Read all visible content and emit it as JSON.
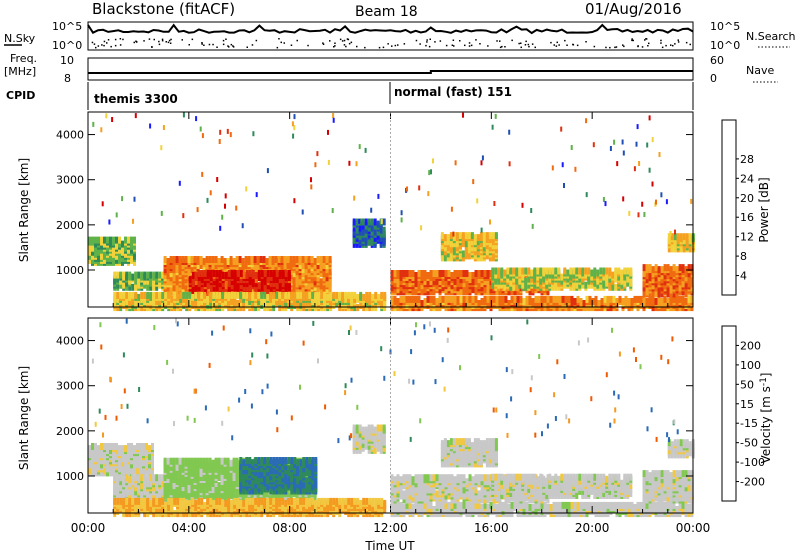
{
  "header": {
    "title": "Blackstone (fitACF)",
    "beam": "Beam 18",
    "date": "01/Aug/2016"
  },
  "nsky_panel": {
    "left_label": "N.Sky",
    "right_label": "N.Search",
    "left_ticks": [
      "10^5",
      "10^0"
    ],
    "right_ticks": [
      "10^5",
      "10^0"
    ]
  },
  "freq_panel": {
    "left_label_1": "Freq.",
    "left_label_2": "[MHz]",
    "right_label": "Nave",
    "left_ticks": [
      "10",
      "8"
    ],
    "right_ticks": [
      "60",
      "0"
    ],
    "cpid_label": "CPID"
  },
  "cpid": [
    {
      "label": "themis 3300",
      "start_hour": 0
    },
    {
      "label": "normal (fast) 151",
      "start_hour": 12
    }
  ],
  "time_axis": {
    "label": "Time UT",
    "ticks": [
      "00:00",
      "04:00",
      "08:00",
      "12:00",
      "16:00",
      "20:00",
      "00:00"
    ]
  },
  "colors": {
    "power_scale": [
      "#1a1aff",
      "#1f4fb4",
      "#2f8a5a",
      "#5fb24a",
      "#f2d23a",
      "#f5a020",
      "#f06a10",
      "#e03010",
      "#d60000"
    ],
    "velocity_scale": [
      "#e00000",
      "#f05a00",
      "#f59a20",
      "#f2c840",
      "#c8c8c8",
      "#80c850",
      "#2f8a5a",
      "#2a6ab8",
      "#1a3ad8"
    ],
    "background": "#ffffff"
  },
  "chart_data": [
    {
      "type": "heatmap",
      "name": "power",
      "ylabel": "Slant Range [km]",
      "xlabel": "Time UT",
      "x_ticks": [
        "00:00",
        "04:00",
        "08:00",
        "12:00",
        "16:00",
        "20:00",
        "00:00"
      ],
      "y_ticks": [
        "1000",
        "2000",
        "3000",
        "4000"
      ],
      "xlim_hours": [
        0,
        24
      ],
      "ylim_km": [
        180,
        4500
      ],
      "colorbar_label": "Power [dB]",
      "colorbar_ticks": [
        "4",
        "8",
        "12",
        "16",
        "20",
        "24",
        "28"
      ],
      "colorbar_range": [
        0,
        30
      ],
      "regions": [
        {
          "t0": 0.0,
          "t1": 1.8,
          "r0": 1200,
          "r1": 1700,
          "level": 12
        },
        {
          "t0": 1.0,
          "t1": 3.0,
          "r0": 650,
          "r1": 950,
          "level": 12
        },
        {
          "t0": 3.0,
          "t1": 9.6,
          "r0": 500,
          "r1": 1300,
          "level": 20
        },
        {
          "t0": 4.0,
          "t1": 8.0,
          "r0": 550,
          "r1": 1000,
          "level": 27
        },
        {
          "t0": 1.0,
          "t1": 11.8,
          "r0": 200,
          "r1": 480,
          "level": 16
        },
        {
          "t0": 10.5,
          "t1": 11.8,
          "r0": 1600,
          "r1": 2100,
          "level": 6
        },
        {
          "t0": 12.0,
          "t1": 24.0,
          "r0": 200,
          "r1": 420,
          "level": 20
        },
        {
          "t0": 12.0,
          "t1": 18.3,
          "r0": 550,
          "r1": 1000,
          "level": 22
        },
        {
          "t0": 14.0,
          "t1": 16.2,
          "r0": 1300,
          "r1": 1800,
          "level": 16
        },
        {
          "t0": 16.0,
          "t1": 21.5,
          "r0": 650,
          "r1": 1050,
          "level": 14
        },
        {
          "t0": 22.0,
          "t1": 24.0,
          "r0": 500,
          "r1": 1100,
          "level": 22
        },
        {
          "t0": 23.0,
          "t1": 24.0,
          "r0": 1500,
          "r1": 1800,
          "level": 16
        }
      ]
    },
    {
      "type": "heatmap",
      "name": "velocity",
      "ylabel": "Slant Range [km]",
      "xlabel": "Time UT",
      "x_ticks": [
        "00:00",
        "04:00",
        "08:00",
        "12:00",
        "16:00",
        "20:00",
        "00:00"
      ],
      "y_ticks": [
        "1000",
        "2000",
        "3000",
        "4000"
      ],
      "xlim_hours": [
        0,
        24
      ],
      "ylim_km": [
        180,
        4500
      ],
      "colorbar_label": "Velocity [m s^-1]",
      "colorbar_ticks": [
        "200",
        "100",
        "50",
        "15",
        "-15",
        "-50",
        "-100",
        "-200"
      ],
      "colorbar_range": [
        -250,
        250
      ],
      "regions": [
        {
          "t0": 0.0,
          "t1": 2.6,
          "r0": 1100,
          "r1": 1700,
          "level": 0
        },
        {
          "t0": 1.0,
          "t1": 3.4,
          "r0": 500,
          "r1": 1000,
          "level": 0
        },
        {
          "t0": 3.0,
          "t1": 9.0,
          "r0": 550,
          "r1": 1400,
          "level": 30
        },
        {
          "t0": 6.0,
          "t1": 9.0,
          "r0": 700,
          "r1": 1400,
          "level": 100
        },
        {
          "t0": 1.0,
          "t1": 11.8,
          "r0": 200,
          "r1": 500,
          "level": -50
        },
        {
          "t0": 10.5,
          "t1": 11.8,
          "r0": 1600,
          "r1": 2100,
          "level": 0
        },
        {
          "t0": 12.0,
          "t1": 24.0,
          "r0": 200,
          "r1": 420,
          "level": 0
        },
        {
          "t0": 12.0,
          "t1": 18.3,
          "r0": 500,
          "r1": 1000,
          "level": 0
        },
        {
          "t0": 14.0,
          "t1": 16.2,
          "r0": 1300,
          "r1": 1800,
          "level": 0
        },
        {
          "t0": 16.0,
          "t1": 21.5,
          "r0": 600,
          "r1": 1050,
          "level": 0
        },
        {
          "t0": 22.0,
          "t1": 24.0,
          "r0": 500,
          "r1": 1100,
          "level": 0
        },
        {
          "t0": 23.0,
          "t1": 24.0,
          "r0": 1500,
          "r1": 1800,
          "level": 0
        }
      ]
    }
  ]
}
